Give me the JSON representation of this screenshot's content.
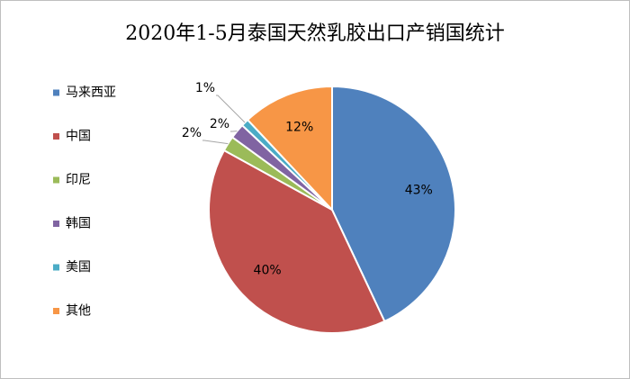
{
  "chart_data": {
    "type": "pie",
    "title": "2020年1-5月泰国天然乳胶出口产销国统计",
    "categories": [
      "马来西亚",
      "中国",
      "印尼",
      "韩国",
      "美国",
      "其他"
    ],
    "values": [
      43,
      40,
      2,
      2,
      1,
      12
    ],
    "value_labels": [
      "43%",
      "40%",
      "2%",
      "2%",
      "1%",
      "12%"
    ],
    "colors": [
      "#4f81bd",
      "#c0504d",
      "#9bbb59",
      "#8064a2",
      "#4bacc6",
      "#f79646"
    ],
    "legend": "left"
  }
}
